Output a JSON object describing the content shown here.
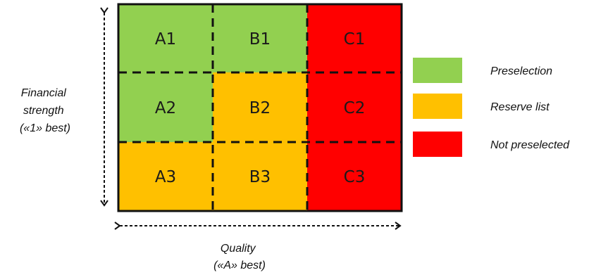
{
  "colors": {
    "green": "#92d050",
    "orange": "#ffc000",
    "red": "#ff0000",
    "border": "#111111"
  },
  "y_axis": {
    "label_lines": [
      "Financial",
      "strength",
      "(«1» best)"
    ]
  },
  "x_axis": {
    "label_lines": [
      "Quality",
      "(«A» best)"
    ]
  },
  "grid": {
    "rows": [
      [
        {
          "label": "A1",
          "status": "green"
        },
        {
          "label": "B1",
          "status": "green"
        },
        {
          "label": "C1",
          "status": "red"
        }
      ],
      [
        {
          "label": "A2",
          "status": "green"
        },
        {
          "label": "B2",
          "status": "orange"
        },
        {
          "label": "C2",
          "status": "red"
        }
      ],
      [
        {
          "label": "A3",
          "status": "orange"
        },
        {
          "label": "B3",
          "status": "orange"
        },
        {
          "label": "C3",
          "status": "red"
        }
      ]
    ]
  },
  "legend": [
    {
      "label": "Preselection",
      "color": "green"
    },
    {
      "label": "Reserve list",
      "color": "orange"
    },
    {
      "label": "Not preselected",
      "color": "red"
    }
  ]
}
